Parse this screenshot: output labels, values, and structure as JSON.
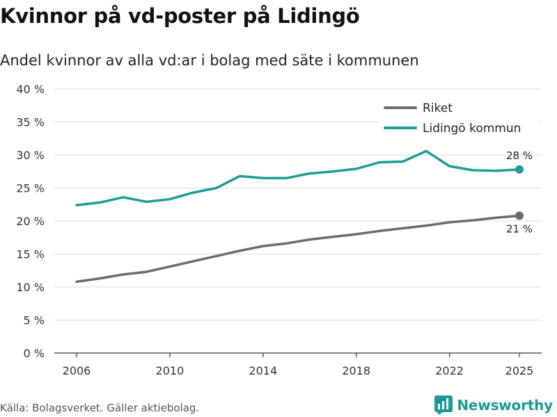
{
  "title": "Kvinnor på vd-poster på Lidingö",
  "subtitle": "Andel kvinnor av alla vd:ar i bolag med säte i kommunen",
  "source": "Källa: Bolagsverket. Gäller aktiebolag.",
  "brand": "Newsworthy",
  "chart_data": {
    "type": "line",
    "title": "Kvinnor på vd-poster på Lidingö",
    "subtitle": "Andel kvinnor av alla vd:ar i bolag med säte i kommunen",
    "xlabel": "",
    "ylabel": "",
    "x": [
      2006,
      2007,
      2008,
      2009,
      2010,
      2011,
      2012,
      2013,
      2014,
      2015,
      2016,
      2017,
      2018,
      2019,
      2020,
      2021,
      2022,
      2023,
      2024,
      2025
    ],
    "xlim": [
      2006,
      2025
    ],
    "xticks": [
      2006,
      2010,
      2014,
      2018,
      2022,
      2025
    ],
    "ylim": [
      0,
      40
    ],
    "yticks": [
      0,
      5,
      10,
      15,
      20,
      25,
      30,
      35,
      40
    ],
    "ytick_labels": [
      "0 %",
      "5 %",
      "10 %",
      "15 %",
      "20 %",
      "25 %",
      "30 %",
      "35 %",
      "40 %"
    ],
    "grid": true,
    "legend_position": "top-right",
    "series": [
      {
        "name": "Riket",
        "color": "#6b6a70",
        "values": [
          10.8,
          11.3,
          11.9,
          12.3,
          13.1,
          13.9,
          14.7,
          15.5,
          16.2,
          16.6,
          17.2,
          17.6,
          18.0,
          18.5,
          18.9,
          19.3,
          19.8,
          20.1,
          20.5,
          20.8
        ],
        "end_label": "21 %"
      },
      {
        "name": "Lidingö kommun",
        "color": "#1b9e94",
        "values": [
          22.4,
          22.8,
          23.6,
          22.9,
          23.3,
          24.3,
          25.0,
          26.8,
          26.5,
          26.5,
          27.2,
          27.5,
          27.9,
          28.9,
          29.0,
          30.6,
          28.3,
          27.7,
          27.6,
          27.8
        ],
        "end_label": "28 %"
      }
    ]
  }
}
